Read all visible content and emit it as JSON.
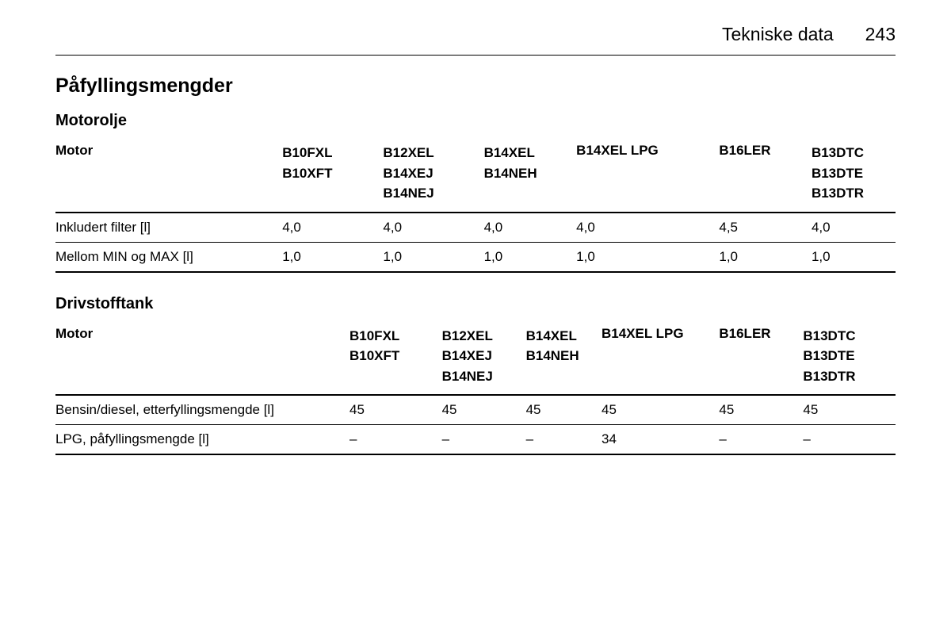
{
  "header": {
    "section_title": "Tekniske data",
    "page_number": "243"
  },
  "main_heading": "Påfyllingsmengder",
  "table1": {
    "heading": "Motorolje",
    "columns": [
      "Motor",
      "B10FXL\nB10XFT",
      "B12XEL\nB14XEJ\nB14NEJ",
      "B14XEL\nB14NEH",
      "B14XEL LPG",
      "B16LER",
      "B13DTC\nB13DTE\nB13DTR"
    ],
    "rows": [
      [
        "Inkludert filter [l]",
        "4,0",
        "4,0",
        "4,0",
        "4,0",
        "4,5",
        "4,0"
      ],
      [
        "Mellom MIN og MAX [l]",
        "1,0",
        "1,0",
        "1,0",
        "1,0",
        "1,0",
        "1,0"
      ]
    ],
    "col_widths": [
      "27%",
      "12%",
      "12%",
      "11%",
      "17%",
      "11%",
      "10%"
    ]
  },
  "table2": {
    "heading": "Drivstofftank",
    "columns": [
      "Motor",
      "B10FXL\nB10XFT",
      "B12XEL\nB14XEJ\nB14NEJ",
      "B14XEL\nB14NEH",
      "B14XEL LPG",
      "B16LER",
      "B13DTC\nB13DTE\nB13DTR"
    ],
    "rows": [
      [
        "Bensin/diesel, etterfyllingsmengde [l]",
        "45",
        "45",
        "45",
        "45",
        "45",
        "45"
      ],
      [
        "LPG, påfyllingsmengde [l]",
        "–",
        "–",
        "–",
        "34",
        "–",
        "–"
      ]
    ],
    "col_widths": [
      "35%",
      "11%",
      "10%",
      "9%",
      "14%",
      "10%",
      "11%"
    ]
  }
}
